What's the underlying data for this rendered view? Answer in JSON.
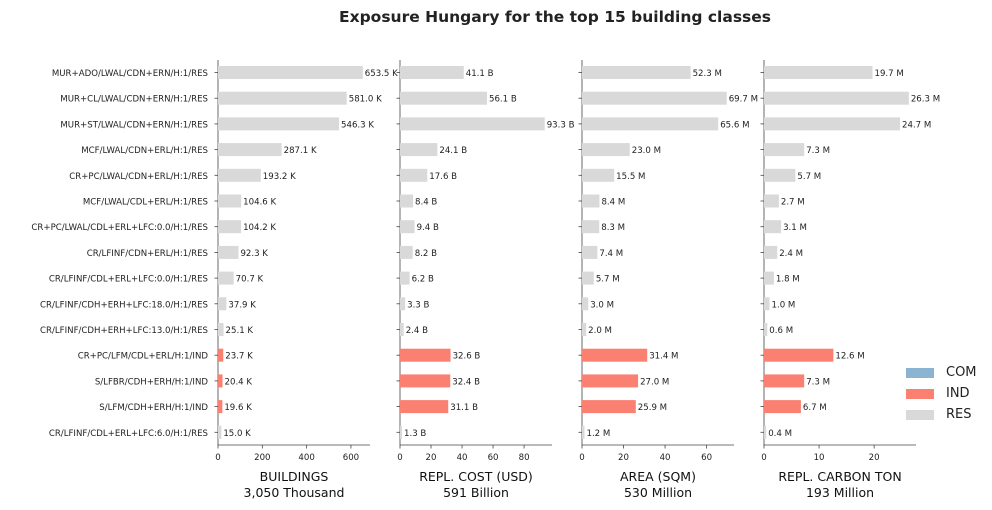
{
  "title": "Exposure Hungary for the top 15 building classes",
  "colors": {
    "COM": "#8ab4d2",
    "IND": "#fa8072",
    "RES": "#d9d9d9"
  },
  "legend": [
    "COM",
    "IND",
    "RES"
  ],
  "chart_data": {
    "type": "bar",
    "orientation": "horizontal",
    "title": "Exposure Hungary for the top 15 building classes",
    "categories": [
      "MUR+ADO/LWAL/CDN+ERN/H:1/RES",
      "MUR+CL/LWAL/CDN+ERN/H:1/RES",
      "MUR+ST/LWAL/CDN+ERN/H:1/RES",
      "MCF/LWAL/CDN+ERL/H:1/RES",
      "CR+PC/LWAL/CDN+ERL/H:1/RES",
      "MCF/LWAL/CDL+ERL/H:1/RES",
      "CR+PC/LWAL/CDL+ERL+LFC:0.0/H:1/RES",
      "CR/LFINF/CDN+ERL/H:1/RES",
      "CR/LFINF/CDL+ERL+LFC:0.0/H:1/RES",
      "CR/LFINF/CDH+ERH+LFC:18.0/H:1/RES",
      "CR/LFINF/CDH+ERH+LFC:13.0/H:1/RES",
      "CR+PC/LFM/CDL+ERL/H:1/IND",
      "S/LFBR/CDH+ERH/H:1/IND",
      "S/LFM/CDH+ERH/H:1/IND",
      "CR/LFINF/CDL+ERL+LFC:6.0/H:1/RES"
    ],
    "occupancy": [
      "RES",
      "RES",
      "RES",
      "RES",
      "RES",
      "RES",
      "RES",
      "RES",
      "RES",
      "RES",
      "RES",
      "IND",
      "IND",
      "IND",
      "RES"
    ],
    "panels": [
      {
        "xlabel": "BUILDINGS",
        "subtitle": "3,050 Thousand",
        "values": [
          653.5,
          581.0,
          546.3,
          287.1,
          193.2,
          104.6,
          104.2,
          92.3,
          70.7,
          37.9,
          25.1,
          23.7,
          20.4,
          19.6,
          15.0
        ],
        "labels": [
          "653.5 K",
          "581.0 K",
          "546.3 K",
          "287.1 K",
          "193.2 K",
          "104.6 K",
          "104.2 K",
          "92.3 K",
          "70.7 K",
          "37.9 K",
          "25.1 K",
          "23.7 K",
          "20.4 K",
          "19.6 K",
          "15.0 K"
        ],
        "xlim": [
          0,
          686
        ],
        "ticks": [
          0,
          200,
          400,
          600
        ]
      },
      {
        "xlabel": "REPL. COST (USD)",
        "subtitle": "591 Billion",
        "values": [
          41.1,
          56.1,
          93.3,
          24.1,
          17.6,
          8.4,
          9.4,
          8.2,
          6.2,
          3.3,
          2.4,
          32.6,
          32.4,
          31.1,
          1.3
        ],
        "labels": [
          "41.1 B",
          "56.1 B",
          "93.3 B",
          "24.1 B",
          "17.6 B",
          "8.4 B",
          "9.4 B",
          "8.2 B",
          "6.2 B",
          "3.3 B",
          "2.4 B",
          "32.6 B",
          "32.4 B",
          "31.1 B",
          "1.3 B"
        ],
        "xlim": [
          0,
          98
        ],
        "ticks": [
          0,
          20,
          40,
          60,
          80
        ]
      },
      {
        "xlabel": "AREA (SQM)",
        "subtitle": "530 Million",
        "values": [
          52.3,
          69.7,
          65.6,
          23.0,
          15.5,
          8.4,
          8.3,
          7.4,
          5.7,
          3.0,
          2.0,
          31.4,
          27.0,
          25.9,
          1.2
        ],
        "labels": [
          "52.3 M",
          "69.7 M",
          "65.6 M",
          "23.0 M",
          "15.5 M",
          "8.4 M",
          "8.3 M",
          "7.4 M",
          "5.7 M",
          "3.0 M",
          "2.0 M",
          "31.4 M",
          "27.0 M",
          "25.9 M",
          "1.2 M"
        ],
        "xlim": [
          0,
          73.2
        ],
        "ticks": [
          0,
          20,
          40,
          60
        ]
      },
      {
        "xlabel": "REPL. CARBON TON",
        "subtitle": "193 Million",
        "values": [
          19.7,
          26.3,
          24.7,
          7.3,
          5.7,
          2.7,
          3.1,
          2.4,
          1.8,
          1.0,
          0.6,
          12.6,
          7.3,
          6.7,
          0.4
        ],
        "labels": [
          "19.7 M",
          "26.3 M",
          "24.7 M",
          "7.3 M",
          "5.7 M",
          "2.7 M",
          "3.1 M",
          "2.4 M",
          "1.8 M",
          "1.0 M",
          "0.6 M",
          "12.6 M",
          "7.3 M",
          "6.7 M",
          "0.4 M"
        ],
        "xlim": [
          0,
          27.6
        ],
        "ticks": [
          0,
          10,
          20
        ]
      }
    ]
  }
}
